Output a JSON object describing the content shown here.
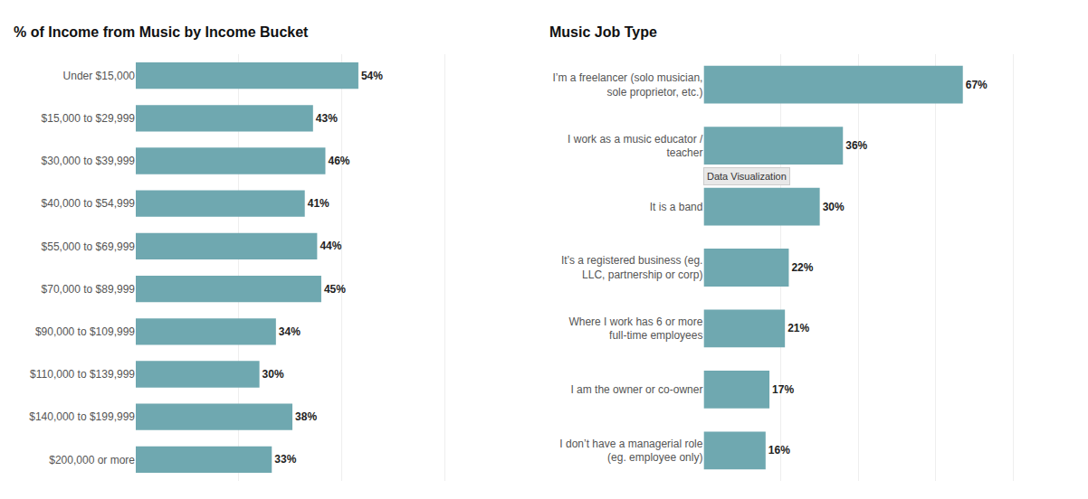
{
  "chart_data": [
    {
      "type": "bar",
      "orientation": "horizontal",
      "title": "% of Income from Music by Income Bucket",
      "categories": [
        "Under $15,000",
        "$15,000 to $29,999",
        "$30,000 to $39,999",
        "$40,000 to $54,999",
        "$55,000 to $69,999",
        "$70,000 to $89,999",
        "$90,000 to $109,999",
        "$110,000 to $139,999",
        "$140,000 to $199,999",
        "$200,000 or more"
      ],
      "values": [
        54,
        43,
        46,
        41,
        44,
        45,
        34,
        30,
        38,
        33
      ],
      "value_labels": [
        "54%",
        "43%",
        "46%",
        "41%",
        "44%",
        "45%",
        "34%",
        "30%",
        "38%",
        "33%"
      ],
      "data_labels": true,
      "color": "#6fa8b0",
      "xlim": [
        0,
        80
      ],
      "xticks": [
        0,
        25,
        50,
        75
      ],
      "grid": true,
      "tick_labels": "y"
    },
    {
      "type": "bar",
      "orientation": "horizontal",
      "title": "Music Job Type",
      "categories": [
        "I’m a freelancer (solo musician,\nsole proprietor, etc.)",
        "I work as a music educator /\nteacher",
        "It is a band",
        "It’s a registered business (eg.\nLLC, partnership or corp)",
        "Where I work has 6 or more\nfull-time employees",
        "I am the owner or co-owner",
        "I don’t have a managerial role\n(eg. employee only)"
      ],
      "values": [
        67,
        36,
        30,
        22,
        21,
        17,
        16
      ],
      "value_labels": [
        "67%",
        "36%",
        "30%",
        "22%",
        "21%",
        "17%",
        "16%"
      ],
      "data_labels": true,
      "color": "#6fa8b0",
      "xlim": [
        0,
        90
      ],
      "xticks": [
        0,
        20,
        40,
        60,
        80
      ],
      "grid": true,
      "tick_labels": "y",
      "annotations": [
        {
          "text": "Data Visualization",
          "x": 0,
          "y": "It is a band"
        }
      ]
    }
  ]
}
